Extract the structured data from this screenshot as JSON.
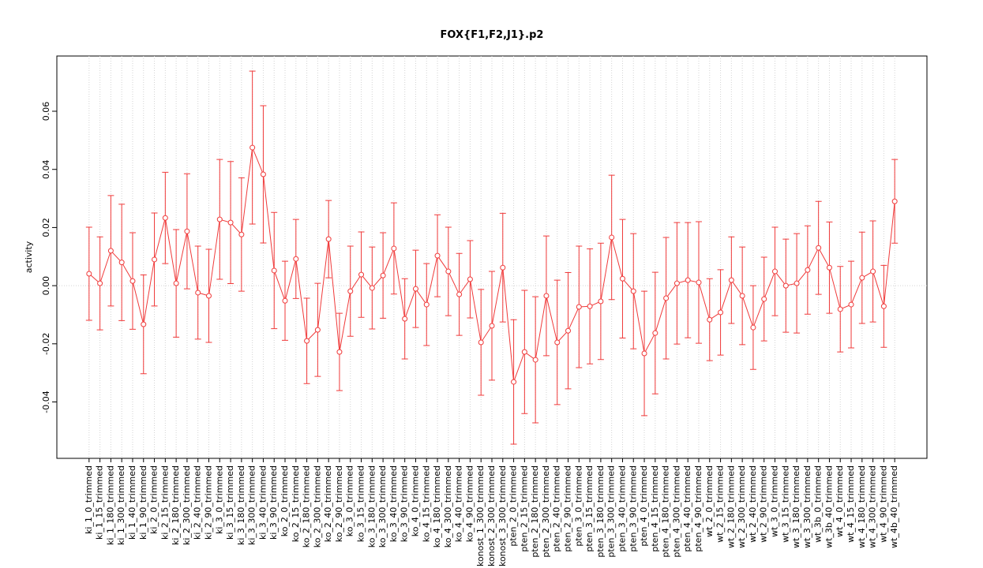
{
  "chart_data": {
    "type": "line",
    "title": "FOX{F1,F2,J1}.p2",
    "ylabel": "activity",
    "categories": [
      "ki_1_0_trimmed",
      "ki_1_15_trimmed",
      "ki_1_180_trimmed",
      "ki_1_300_trimmed",
      "ki_1_40_trimmed",
      "ki_1_90_trimmed",
      "ki_2_0_trimmed",
      "ki_2_15_trimmed",
      "ki_2_180_trimmed",
      "ki_2_300_trimmed",
      "ki_2_40_trimmed",
      "ki_2_90_trimmed",
      "ki_3_0_trimmed",
      "ki_3_15_trimmed",
      "ki_3_180_trimmed",
      "ki_3_300_trimmed",
      "ki_3_40_trimmed",
      "ki_3_90_trimmed",
      "ko_2_0_trimmed",
      "ko_2_15_trimmed",
      "ko_2_180_trimmed",
      "ko_2_300_trimmed",
      "ko_2_40_trimmed",
      "ko_2_90_trimmed",
      "ko_3_0_trimmed",
      "ko_3_15_trimmed",
      "ko_3_180_trimmed",
      "ko_3_300_trimmed",
      "ko_3_40_trimmed",
      "ko_3_90_trimmed",
      "ko_4_0_trimmed",
      "ko_4_15_trimmed",
      "ko_4_180_trimmed",
      "ko_4_300_trimmed",
      "ko_4_40_trimmed",
      "ko_4_90_trimmed",
      "konost_1_300_trimmed",
      "konost_2_300_trimmed",
      "konost_3_300_trimmed",
      "pten_2_0_trimmed",
      "pten_2_15_trimmed",
      "pten_2_180_trimmed",
      "pten_2_300_trimmed",
      "pten_2_40_trimmed",
      "pten_2_90_trimmed",
      "pten_3_0_trimmed",
      "pten_3_15_trimmed",
      "pten_3_180_trimmed",
      "pten_3_300_trimmed",
      "pten_3_40_trimmed",
      "pten_3_90_trimmed",
      "pten_4_0_trimmed",
      "pten_4_15_trimmed",
      "pten_4_180_trimmed",
      "pten_4_300_trimmed",
      "pten_4_40_trimmed",
      "pten_4_90_trimmed",
      "wt_2_0_trimmed",
      "wt_2_15_trimmed",
      "wt_2_180_trimmed",
      "wt_2_300_trimmed",
      "wt_2_40_trimmed",
      "wt_2_90_trimmed",
      "wt_3_0_trimmed",
      "wt_3_15_trimmed",
      "wt_3_180_trimmed",
      "wt_3_300_trimmed",
      "wt_3b_0_trimmed",
      "wt_3b_40_trimmed",
      "wt_4_0_trimmed",
      "wt_4_15_trimmed",
      "wt_4_180_trimmed",
      "wt_4_300_trimmed",
      "wt_4_90_trimmed",
      "wt_4b_40_trimmed"
    ],
    "values": [
      0.0041,
      0.0008,
      0.012,
      0.008,
      0.0016,
      -0.0133,
      0.009,
      0.0233,
      0.0008,
      0.0187,
      -0.0024,
      -0.0035,
      0.0228,
      0.0217,
      0.0176,
      0.0475,
      0.0383,
      0.0052,
      -0.0052,
      0.0092,
      -0.019,
      -0.0152,
      0.016,
      -0.0228,
      -0.0019,
      0.0038,
      -0.0008,
      0.0035,
      0.0128,
      -0.0114,
      -0.0011,
      -0.0065,
      0.0103,
      0.0049,
      -0.003,
      0.0022,
      -0.0195,
      -0.0138,
      0.0062,
      -0.0331,
      -0.0228,
      -0.0255,
      -0.0035,
      -0.0195,
      -0.0155,
      -0.0073,
      -0.0071,
      -0.0054,
      0.0166,
      0.0024,
      -0.0019,
      -0.0233,
      -0.0163,
      -0.0043,
      0.0008,
      0.0019,
      0.0011,
      -0.0117,
      -0.0092,
      0.0019,
      -0.0035,
      -0.0144,
      -0.0046,
      0.0049,
      0,
      0.0008,
      0.0054,
      0.013,
      0.0062,
      -0.0081,
      -0.0065,
      0.0027,
      0.0049,
      -0.0071,
      0.029
    ],
    "errors": [
      0.016,
      0.016,
      0.019,
      0.02,
      0.0166,
      0.017,
      0.016,
      0.0157,
      0.0185,
      0.0198,
      0.016,
      0.016,
      0.0206,
      0.021,
      0.0195,
      0.0263,
      0.0236,
      0.02,
      0.0136,
      0.0136,
      0.0147,
      0.016,
      0.0133,
      0.0133,
      0.0155,
      0.0147,
      0.0141,
      0.0147,
      0.0157,
      0.0138,
      0.0133,
      0.0141,
      0.0141,
      0.0152,
      0.0141,
      0.0133,
      0.0182,
      0.0187,
      0.0187,
      0.0214,
      0.0212,
      0.0217,
      0.0206,
      0.0214,
      0.02,
      0.0209,
      0.0198,
      0.02,
      0.0214,
      0.0204,
      0.0198,
      0.0214,
      0.0209,
      0.0209,
      0.0209,
      0.0198,
      0.0209,
      0.0141,
      0.0147,
      0.0149,
      0.0168,
      0.0144,
      0.0144,
      0.0152,
      0.016,
      0.0171,
      0.0152,
      0.016,
      0.0157,
      0.0147,
      0.0149,
      0.0157,
      0.0174,
      0.0141,
      0.0144
    ],
    "color": "#f03a3a",
    "ylim": [
      -0.0594,
      0.079
    ],
    "yticks": [
      -0.04,
      -0.02,
      {
        "value": 0,
        "label": "0.00"
      },
      0.02,
      0.04,
      0.06
    ],
    "hline": 0,
    "grid": true
  }
}
